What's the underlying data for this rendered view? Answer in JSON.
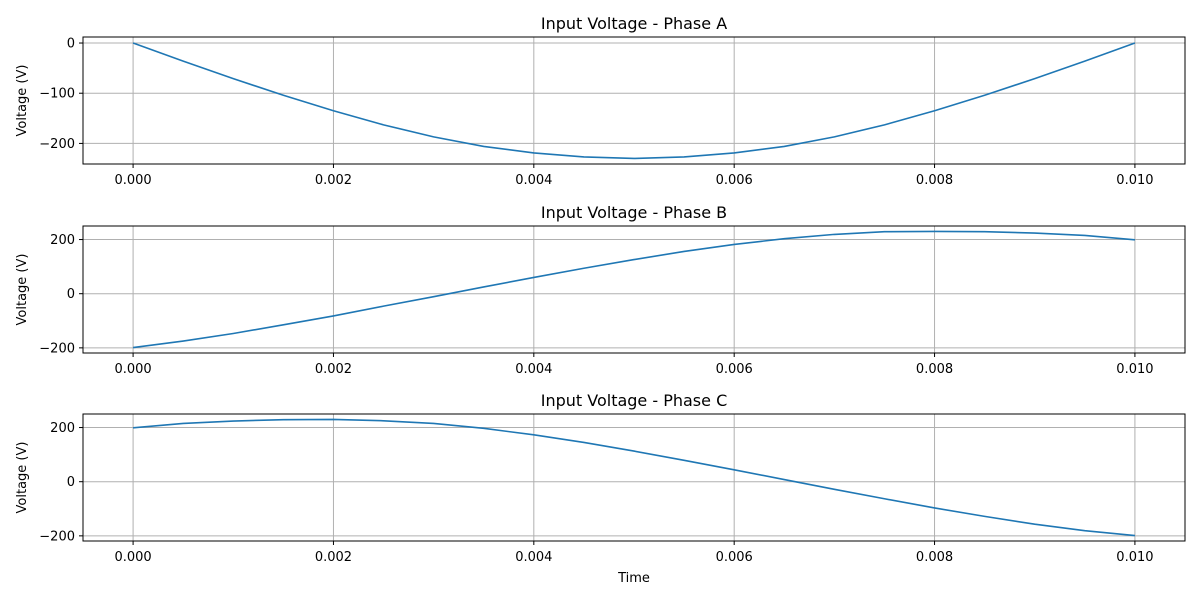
{
  "chart_data": [
    {
      "type": "line",
      "title": "Input Voltage - Phase A",
      "xlabel": "",
      "ylabel": "Voltage (V)",
      "xlim": [
        -0.0005,
        0.0105
      ],
      "ylim": [
        -241,
        12
      ],
      "xticks": [
        0.0,
        0.002,
        0.004,
        0.006,
        0.008,
        0.01
      ],
      "xtick_labels": [
        "0.000",
        "0.002",
        "0.004",
        "0.006",
        "0.008",
        "0.010"
      ],
      "yticks": [
        0,
        -100,
        -200
      ],
      "ytick_labels": [
        "0",
        "−100",
        "−200"
      ],
      "grid": true,
      "color": "#1f77b4",
      "series": [
        {
          "x": [
            0.0,
            0.0005,
            0.001,
            0.0015,
            0.002,
            0.0025,
            0.003,
            0.0035,
            0.004,
            0.0045,
            0.005,
            0.0055,
            0.006,
            0.0065,
            0.007,
            0.0075,
            0.008,
            0.0085,
            0.009,
            0.0095,
            0.01
          ],
          "y": [
            0,
            -36,
            -71,
            -104,
            -135,
            -163,
            -187,
            -206,
            -219,
            -227,
            -230,
            -227,
            -219,
            -206,
            -187,
            -163,
            -135,
            -104,
            -71,
            -36,
            0
          ]
        }
      ]
    },
    {
      "type": "line",
      "title": "Input Voltage - Phase B",
      "xlabel": "",
      "ylabel": "Voltage (V)",
      "xlim": [
        -0.0005,
        0.0105
      ],
      "ylim": [
        -219,
        250
      ],
      "xticks": [
        0.0,
        0.002,
        0.004,
        0.006,
        0.008,
        0.01
      ],
      "xtick_labels": [
        "0.000",
        "0.002",
        "0.004",
        "0.006",
        "0.008",
        "0.010"
      ],
      "yticks": [
        200,
        0,
        -200
      ],
      "ytick_labels": [
        "200",
        "0",
        "−200"
      ],
      "grid": true,
      "color": "#1f77b4",
      "series": [
        {
          "x": [
            0.0,
            0.0005,
            0.001,
            0.0015,
            0.002,
            0.0025,
            0.003,
            0.0035,
            0.004,
            0.0045,
            0.005,
            0.0055,
            0.006,
            0.0065,
            0.007,
            0.0075,
            0.008,
            0.0085,
            0.009,
            0.0095,
            0.01
          ],
          "y": [
            -199,
            -175,
            -147,
            -115,
            -82,
            -46,
            -11,
            25,
            60,
            94,
            126,
            156,
            182,
            203,
            219,
            229,
            230,
            229,
            224,
            215,
            199
          ]
        }
      ]
    },
    {
      "type": "line",
      "title": "Input Voltage - Phase C",
      "xlabel": "Time",
      "ylabel": "Voltage (V)",
      "xlim": [
        -0.0005,
        0.0105
      ],
      "ylim": [
        -219,
        250
      ],
      "xticks": [
        0.0,
        0.002,
        0.004,
        0.006,
        0.008,
        0.01
      ],
      "xtick_labels": [
        "0.000",
        "0.002",
        "0.004",
        "0.006",
        "0.008",
        "0.010"
      ],
      "yticks": [
        200,
        0,
        -200
      ],
      "ytick_labels": [
        "200",
        "0",
        "−200"
      ],
      "grid": true,
      "color": "#1f77b4",
      "series": [
        {
          "x": [
            0.0,
            0.0005,
            0.001,
            0.0015,
            0.002,
            0.0025,
            0.003,
            0.0035,
            0.004,
            0.0045,
            0.005,
            0.0055,
            0.006,
            0.0065,
            0.007,
            0.0075,
            0.008,
            0.0085,
            0.009,
            0.0095,
            0.01
          ],
          "y": [
            199,
            215,
            224,
            229,
            230,
            225,
            215,
            197,
            173,
            145,
            113,
            79,
            44,
            8,
            -28,
            -63,
            -97,
            -128,
            -157,
            -181,
            -199
          ]
        }
      ]
    }
  ]
}
